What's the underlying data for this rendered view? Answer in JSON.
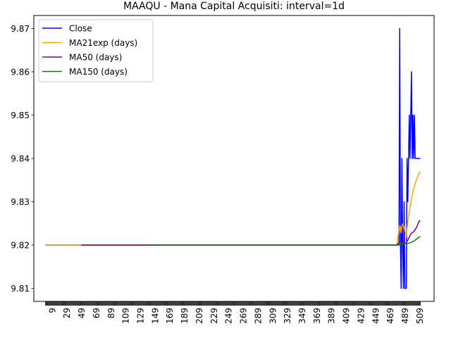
{
  "chart_data": {
    "type": "line",
    "title": "MAAQU - Mana Capital Acquisiti: interval=1d",
    "xlabel": "",
    "ylabel": "",
    "xlim": [
      -15.75,
      528.75
    ],
    "ylim": [
      9.807,
      9.873
    ],
    "x_ticks": [
      9,
      29,
      49,
      69,
      89,
      109,
      129,
      149,
      169,
      189,
      209,
      229,
      249,
      269,
      289,
      309,
      329,
      349,
      369,
      389,
      409,
      429,
      449,
      469,
      489,
      509
    ],
    "y_ticks": [
      9.81,
      9.82,
      9.83,
      9.84,
      9.85,
      9.86,
      9.87
    ],
    "grid": false,
    "legend_position": "upper-left",
    "series": [
      {
        "name": "Close",
        "color": "#0000ff",
        "x": [
          0,
          478,
          479,
          480,
          481,
          482,
          483,
          484,
          485,
          486,
          487,
          488,
          489,
          490,
          491,
          492,
          493,
          494,
          495,
          496,
          497,
          498,
          499,
          500,
          501,
          502,
          503,
          504,
          505,
          506,
          507,
          508,
          509,
          510
        ],
        "y": [
          9.82,
          9.82,
          9.82,
          9.82,
          9.82,
          9.87,
          9.82,
          9.81,
          9.84,
          9.82,
          9.81,
          9.83,
          9.81,
          9.81,
          9.81,
          9.84,
          9.83,
          9.84,
          9.85,
          9.84,
          9.85,
          9.86,
          9.84,
          9.85,
          9.84,
          9.85,
          9.84,
          9.84,
          9.84,
          9.84,
          9.84,
          9.84,
          9.84,
          9.84
        ]
      },
      {
        "name": "MA21exp (days)",
        "color": "#ffa500",
        "x": [
          0,
          20,
          478,
          482,
          483,
          484,
          485,
          486,
          487,
          488,
          489,
          490,
          491,
          492,
          493,
          494,
          495,
          496,
          497,
          498,
          499,
          500,
          501,
          502,
          503,
          504,
          505,
          506,
          507,
          508,
          509,
          510
        ],
        "y": [
          9.82,
          9.82,
          9.82,
          9.8245,
          9.8241,
          9.8228,
          9.8244,
          9.8249,
          9.8245,
          9.8242,
          9.8234,
          9.8226,
          9.822,
          9.8238,
          9.8253,
          9.8266,
          9.8278,
          9.8288,
          9.8298,
          9.8307,
          9.8315,
          9.8323,
          9.833,
          9.8336,
          9.8342,
          9.8347,
          9.8352,
          9.8356,
          9.836,
          9.8364,
          9.8367,
          9.837
        ]
      },
      {
        "name": "MA50 (days)",
        "color": "#800080",
        "x": [
          49,
          478,
          482,
          486,
          490,
          493,
          497,
          501,
          505,
          508,
          510
        ],
        "y": [
          9.82,
          9.82,
          9.8208,
          9.8206,
          9.8204,
          9.8211,
          9.8226,
          9.8231,
          9.8241,
          9.8254,
          9.8257
        ]
      },
      {
        "name": "MA150 (days)",
        "color": "#008000",
        "x": [
          149,
          478,
          484,
          490,
          496,
          502,
          508,
          510
        ],
        "y": [
          9.82,
          9.82,
          9.8203,
          9.8203,
          9.8205,
          9.821,
          9.8218,
          9.822
        ]
      }
    ]
  }
}
